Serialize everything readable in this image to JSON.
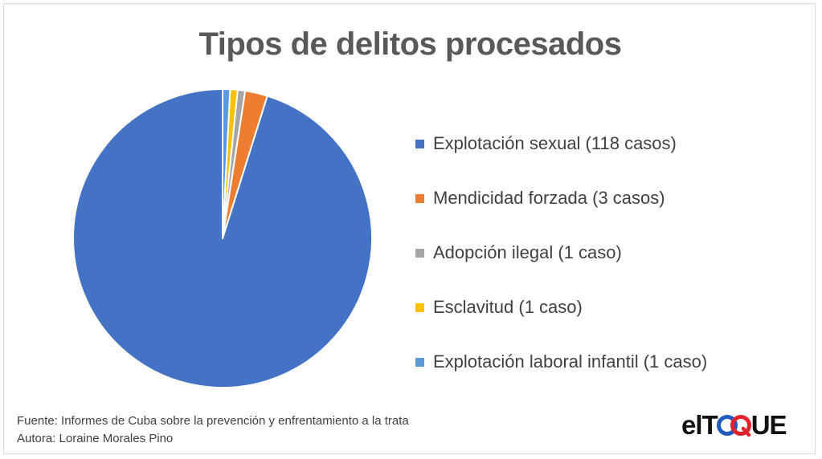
{
  "chart_data": {
    "type": "pie",
    "title": "Tipos de delitos procesados",
    "slices": [
      {
        "label": "Explotación sexual (118 casos)",
        "value": 118,
        "color": "#4472C4"
      },
      {
        "label": "Mendicidad forzada (3 casos)",
        "value": 3,
        "color": "#ED7D31"
      },
      {
        "label": "Adopción ilegal (1 caso)",
        "value": 1,
        "color": "#A5A5A5"
      },
      {
        "label": "Esclavitud (1 caso)",
        "value": 1,
        "color": "#FFC000"
      },
      {
        "label": "Explotación laboral infantil (1 caso)",
        "value": 1,
        "color": "#5B9BD5"
      }
    ],
    "legend_position": "right"
  },
  "footer": {
    "source": "Fuente: Informes de Cuba sobre la prevención y enfrentamiento a la trata",
    "author": "Autora: Loraine Morales Pino"
  },
  "logo": {
    "text_left": "elT",
    "text_right": "UE",
    "ring_colors": [
      "#1f5bbf",
      "#e3232c"
    ]
  }
}
